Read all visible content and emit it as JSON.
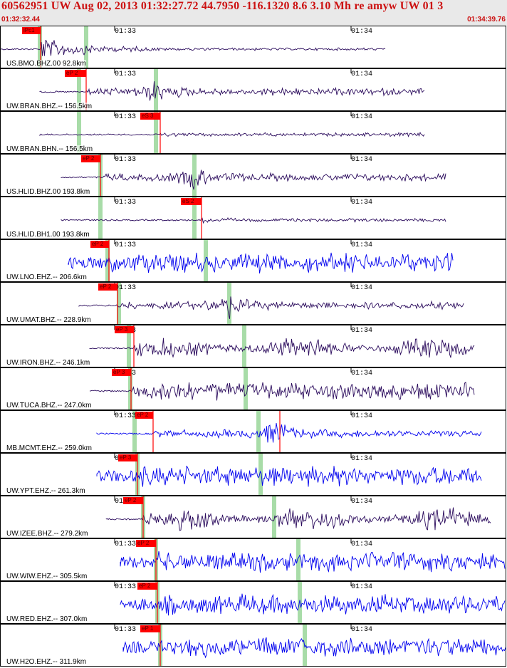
{
  "header": {
    "title": "60562951 UW Aug 02, 2013 01:32:27.72    44.7950 -116.1320  8.6 3.10 Mh re amyw UW 01    3",
    "start_time": "01:32:32.44",
    "end_time": "01:34:39.76"
  },
  "colors": {
    "broadband": "#2a0a5c",
    "shortperiod": "#0000ee",
    "pick": "#ff0000",
    "predicted": "#a8dca8"
  },
  "minute_labels": [
    "01:33",
    "01:34"
  ],
  "traces": [
    {
      "channel": "US.BMO.BHZ.00 92.8km",
      "kind": "broadband",
      "pick": "iPc1",
      "sig_start": 0.0,
      "sig_end": 0.76
    },
    {
      "channel": "UW.BRAN.BHZ.-- 156.5km",
      "kind": "broadband",
      "pick": "eP 2",
      "sig_start": 0.07,
      "sig_end": 0.84
    },
    {
      "channel": "UW.BRAN.BHN.-- 156.5km",
      "kind": "broadband",
      "pick": "eS 3",
      "sig_start": 0.07,
      "sig_end": 0.84
    },
    {
      "channel": "US.HLID.BHZ.00 193.8km",
      "kind": "broadband",
      "pick": "eP 2",
      "sig_start": 0.12,
      "sig_end": 0.88
    },
    {
      "channel": "US.HLID.BH1.00 193.8km",
      "kind": "broadband",
      "pick": "eS 2",
      "sig_start": 0.12,
      "sig_end": 0.88
    },
    {
      "channel": "UW.LNO.EHZ.-- 206.6km",
      "kind": "shortperiod",
      "pick": "eP 2",
      "sig_start": 0.13,
      "sig_end": 0.9
    },
    {
      "channel": "UW.UMAT.BHZ.-- 228.9km",
      "kind": "broadband",
      "pick": "eP 2",
      "sig_start": 0.15,
      "sig_end": 0.92
    },
    {
      "channel": "UW.IRON.BHZ.-- 246.1km",
      "kind": "broadband",
      "pick": "eP 3",
      "sig_start": 0.18,
      "sig_end": 0.94
    },
    {
      "channel": "UW.TUCA.BHZ.-- 247.0km",
      "kind": "broadband",
      "pick": "eP 3",
      "sig_start": 0.18,
      "sig_end": 0.94
    },
    {
      "channel": "MB.MCMT.EHZ.-- 259.0km",
      "kind": "shortperiod",
      "pick": "eP 2",
      "sig_start": 0.19,
      "sig_end": 0.95
    },
    {
      "channel": "UW.YPT.EHZ.-- 261.3km",
      "kind": "shortperiod",
      "pick": "eP 3",
      "sig_start": 0.19,
      "sig_end": 0.95
    },
    {
      "channel": "UW.IZEE.BHZ.-- 279.2km",
      "kind": "broadband",
      "pick": "eP 2",
      "sig_start": 0.2,
      "sig_end": 0.97
    },
    {
      "channel": "UW.WIW.EHZ.-- 305.5km",
      "kind": "shortperiod",
      "pick": "eP 2",
      "sig_start": 0.23,
      "sig_end": 0.99
    },
    {
      "channel": "UW.RED.EHZ.-- 307.0km",
      "kind": "shortperiod",
      "pick": "eP 2",
      "sig_start": 0.23,
      "sig_end": 0.99
    },
    {
      "channel": "UW.H2O.EHZ.-- 311.9km",
      "kind": "shortperiod",
      "pick": "eP 1",
      "sig_start": 0.24,
      "sig_end": 1.0
    }
  ]
}
